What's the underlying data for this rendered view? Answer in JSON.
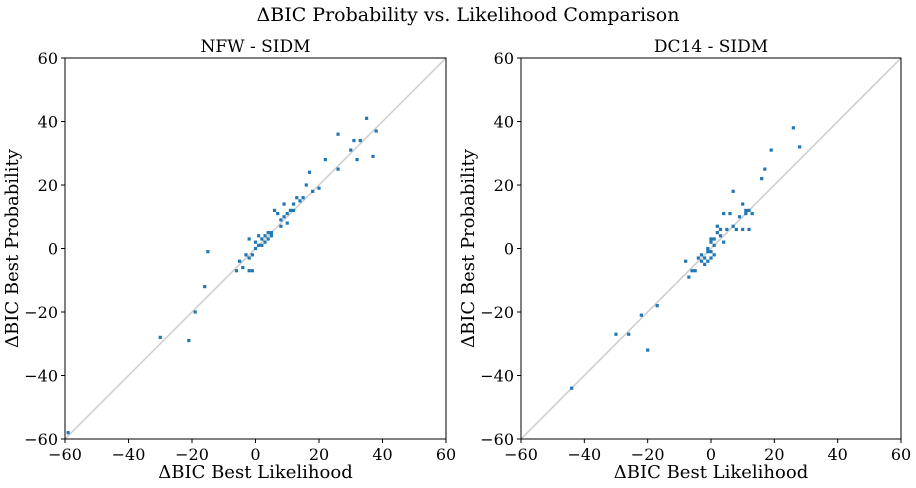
{
  "suptitle": "ΔBIC Probability vs. Likelihood Comparison",
  "chart_data": [
    {
      "type": "scatter",
      "title": "NFW - SIDM",
      "xlabel": "ΔBIC Best Likelihood",
      "ylabel": "ΔBIC Best Probability",
      "xlim": [
        -60,
        60
      ],
      "ylim": [
        -60,
        60
      ],
      "xticks": [
        -60,
        -40,
        -20,
        0,
        20,
        40,
        60
      ],
      "yticks": [
        -60,
        -40,
        -20,
        0,
        20,
        40,
        60
      ],
      "tick_labels": [
        "−60",
        "−40",
        "−20",
        "0",
        "20",
        "40",
        "60"
      ],
      "grid": false,
      "reference_line": "y = x",
      "reference_line_color": "#cccccc",
      "point_color": "#1f77b4",
      "points": [
        [
          -59,
          -58
        ],
        [
          -30,
          -28
        ],
        [
          -21,
          -29
        ],
        [
          -19,
          -20
        ],
        [
          -16,
          -12
        ],
        [
          -15,
          -1
        ],
        [
          -6,
          -7
        ],
        [
          -5,
          -4
        ],
        [
          -4,
          -6
        ],
        [
          -3,
          -2
        ],
        [
          -2,
          -3
        ],
        [
          -2,
          -7
        ],
        [
          -1,
          -7
        ],
        [
          -2,
          3
        ],
        [
          -1,
          -2
        ],
        [
          0,
          0
        ],
        [
          0,
          2
        ],
        [
          1,
          1
        ],
        [
          1,
          4
        ],
        [
          2,
          1
        ],
        [
          2,
          3
        ],
        [
          3,
          2
        ],
        [
          3,
          4
        ],
        [
          4,
          3
        ],
        [
          4,
          5
        ],
        [
          5,
          4
        ],
        [
          5,
          5
        ],
        [
          6,
          12
        ],
        [
          7,
          11
        ],
        [
          8,
          7
        ],
        [
          8,
          9
        ],
        [
          9,
          10
        ],
        [
          9,
          14
        ],
        [
          10,
          8
        ],
        [
          10,
          11
        ],
        [
          11,
          12
        ],
        [
          12,
          12
        ],
        [
          12,
          14
        ],
        [
          13,
          16
        ],
        [
          14,
          15
        ],
        [
          15,
          16
        ],
        [
          16,
          20
        ],
        [
          17,
          24
        ],
        [
          18,
          18
        ],
        [
          20,
          19
        ],
        [
          22,
          28
        ],
        [
          26,
          25
        ],
        [
          26,
          36
        ],
        [
          30,
          31
        ],
        [
          31,
          34
        ],
        [
          32,
          28
        ],
        [
          33,
          34
        ],
        [
          35,
          41
        ],
        [
          37,
          29
        ],
        [
          38,
          37
        ]
      ]
    },
    {
      "type": "scatter",
      "title": "DC14 - SIDM",
      "xlabel": "ΔBIC Best Likelihood",
      "ylabel": "ΔBIC Best Probability",
      "xlim": [
        -60,
        60
      ],
      "ylim": [
        -60,
        60
      ],
      "xticks": [
        -60,
        -40,
        -20,
        0,
        20,
        40,
        60
      ],
      "yticks": [
        -60,
        -40,
        -20,
        0,
        20,
        40,
        60
      ],
      "tick_labels": [
        "−60",
        "−40",
        "−20",
        "0",
        "20",
        "40",
        "60"
      ],
      "grid": false,
      "reference_line": "y = x",
      "reference_line_color": "#cccccc",
      "point_color": "#1f77b4",
      "points": [
        [
          -44,
          -44
        ],
        [
          -30,
          -27
        ],
        [
          -26,
          -27
        ],
        [
          -22,
          -21
        ],
        [
          -20,
          -32
        ],
        [
          -17,
          -18
        ],
        [
          -8,
          -4
        ],
        [
          -7,
          -9
        ],
        [
          -6,
          -7
        ],
        [
          -5,
          -7
        ],
        [
          -4,
          -3
        ],
        [
          -3,
          -4
        ],
        [
          -3,
          -2
        ],
        [
          -2,
          -5
        ],
        [
          -2,
          -3
        ],
        [
          -1,
          -4
        ],
        [
          -1,
          -1
        ],
        [
          -1,
          0
        ],
        [
          0,
          2
        ],
        [
          0,
          3
        ],
        [
          0,
          -1
        ],
        [
          0,
          -3
        ],
        [
          1,
          -2
        ],
        [
          1,
          1
        ],
        [
          1,
          3
        ],
        [
          2,
          7
        ],
        [
          2,
          5
        ],
        [
          3,
          4
        ],
        [
          3,
          6
        ],
        [
          4,
          2
        ],
        [
          4,
          11
        ],
        [
          5,
          6
        ],
        [
          6,
          11
        ],
        [
          7,
          7
        ],
        [
          7,
          18
        ],
        [
          8,
          6
        ],
        [
          9,
          10
        ],
        [
          10,
          14
        ],
        [
          10,
          6
        ],
        [
          11,
          11
        ],
        [
          11,
          12
        ],
        [
          12,
          6
        ],
        [
          12,
          12
        ],
        [
          13,
          11
        ],
        [
          16,
          22
        ],
        [
          17,
          25
        ],
        [
          19,
          31
        ],
        [
          26,
          38
        ],
        [
          28,
          32
        ]
      ]
    }
  ]
}
